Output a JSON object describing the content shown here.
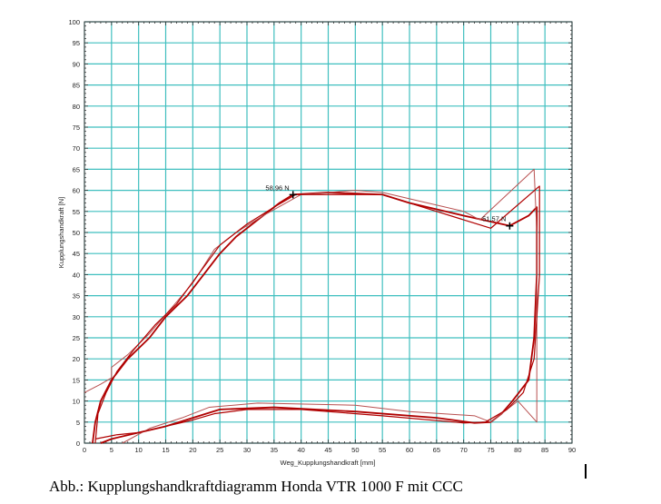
{
  "chart_data": {
    "type": "line",
    "xlabel": "Weg_Kupplungshandkraft [mm]",
    "ylabel": "Kupplungshandkraft [N]",
    "xlim": [
      0,
      90
    ],
    "ylim": [
      0,
      100
    ],
    "xticks": [
      0,
      5,
      10,
      15,
      20,
      25,
      30,
      35,
      40,
      45,
      50,
      55,
      60,
      65,
      70,
      75,
      80,
      85,
      90
    ],
    "yticks": [
      0,
      5,
      10,
      15,
      20,
      25,
      30,
      35,
      40,
      45,
      50,
      55,
      60,
      65,
      70,
      75,
      80,
      85,
      90,
      95,
      100
    ],
    "grid": true,
    "colors": {
      "grid": "#3fbfbf",
      "series_dark": "#b00000",
      "series_light": "#b85050"
    },
    "series": [
      {
        "x": [
          1.5,
          2,
          3,
          5,
          8,
          12,
          15,
          19,
          22,
          25,
          28,
          32,
          36,
          38.5,
          45,
          55,
          60,
          70,
          78.5,
          82,
          83.5,
          83.5,
          83,
          82,
          79,
          77,
          75,
          72,
          65,
          50,
          35,
          25,
          20,
          15,
          10,
          5,
          3
        ],
        "y": [
          0,
          5,
          10,
          15,
          20,
          25,
          30,
          35,
          40,
          45,
          49,
          53,
          57,
          59,
          59.5,
          59,
          57,
          54,
          51.6,
          54,
          56,
          40,
          25,
          15,
          10,
          7,
          5,
          4.8,
          6,
          7.5,
          8.5,
          8,
          6,
          4,
          2.5,
          1,
          0
        ]
      },
      {
        "x": [
          0,
          3,
          5,
          5,
          8,
          12,
          16,
          20,
          24,
          28,
          33,
          40,
          50,
          55,
          60,
          70,
          73,
          83,
          83.5,
          83.5,
          80,
          75,
          72,
          60,
          50,
          32,
          23,
          18,
          12,
          7
        ],
        "y": [
          12,
          14,
          15.5,
          18,
          21,
          26,
          32,
          38,
          46,
          50,
          54,
          59,
          60,
          59.5,
          58,
          55,
          53,
          65,
          50,
          5,
          10,
          5,
          6.5,
          7.5,
          9,
          9.5,
          8.5,
          6,
          3.5,
          0
        ]
      },
      {
        "x": [
          2,
          2.5,
          4,
          6,
          9,
          13,
          17,
          21,
          25,
          30,
          35,
          39,
          55,
          65,
          75,
          84,
          84,
          83,
          81,
          78,
          74,
          70,
          55,
          40,
          30,
          24,
          20,
          10,
          6,
          2
        ],
        "y": [
          0,
          7,
          12,
          17,
          22,
          28,
          33,
          40,
          47,
          52,
          56,
          59,
          59,
          55,
          51,
          61,
          40,
          20,
          12,
          8,
          5,
          4.8,
          6.5,
          8,
          8,
          7,
          5.5,
          2.5,
          2,
          1
        ]
      }
    ],
    "annotations": [
      {
        "text": "58,96 N",
        "x": 38.5,
        "y": 58.96
      },
      {
        "text": "51,57 N",
        "x": 78.5,
        "y": 51.57
      }
    ]
  },
  "caption": "Abb.: Kupplungshandkraftdiagramm Honda VTR 1000 F mit CCC"
}
